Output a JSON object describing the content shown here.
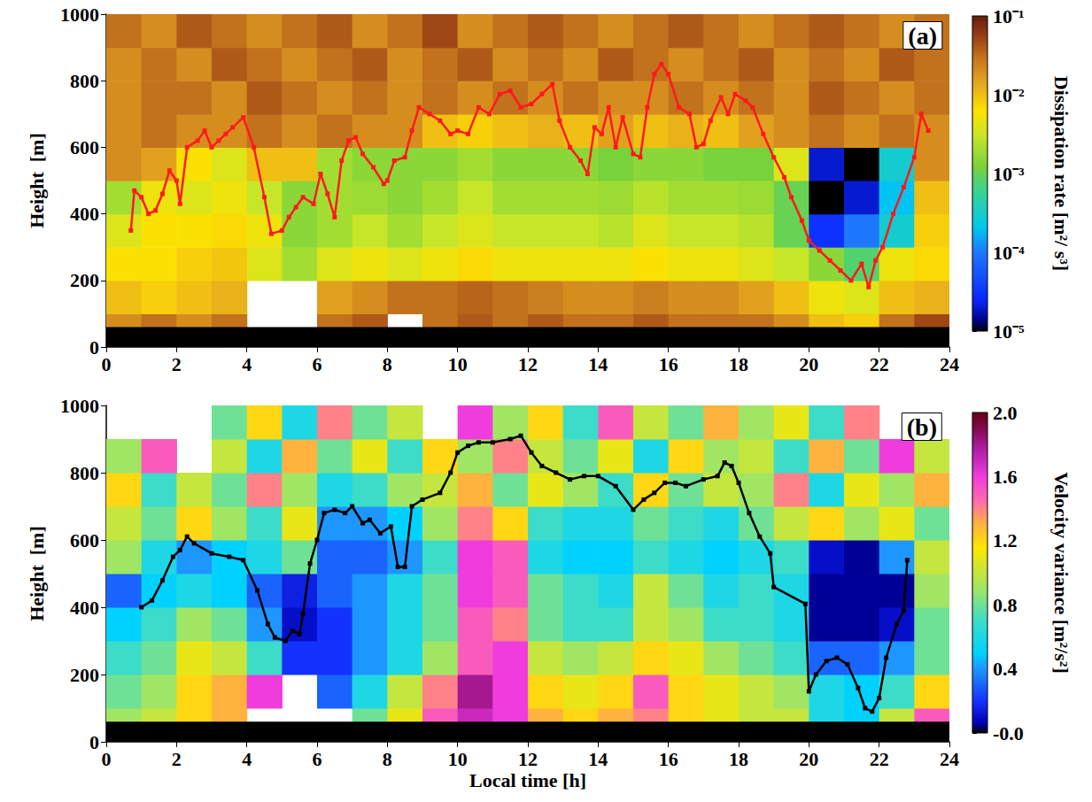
{
  "chart_data": [
    {
      "type": "heatmap",
      "title": "(a)",
      "y_label": "Height  [m]",
      "xlim": [
        0,
        24
      ],
      "xticks": [
        0,
        2,
        4,
        6,
        8,
        10,
        12,
        14,
        16,
        18,
        20,
        22,
        24
      ],
      "ylim": [
        0,
        1000
      ],
      "yticks": [
        0,
        200,
        400,
        600,
        800,
        1000
      ],
      "grid": false,
      "blind_zone": [
        0,
        60
      ],
      "colorbar": {
        "label": "Dissipation rate [m²/ s³]",
        "log": true,
        "lim": [
          1e-05,
          0.1
        ],
        "ticks": [
          {
            "value": 1e-05,
            "label": "10⁻⁵"
          },
          {
            "value": 0.0001,
            "label": "10⁻⁴"
          },
          {
            "value": 0.001,
            "label": "10⁻³"
          },
          {
            "value": 0.01,
            "label": "10⁻²"
          },
          {
            "value": 0.1,
            "label": "10⁻¹"
          }
        ]
      },
      "cells": {
        "x": [
          0.5,
          1.5,
          2.5,
          3.5,
          4.5,
          5.5,
          6.5,
          7.5,
          8.5,
          9.5,
          10.5,
          11.5,
          12.5,
          13.5,
          14.5,
          15.5,
          16.5,
          17.5,
          18.5,
          19.5,
          20.5,
          21.5,
          22.5,
          23.5
        ],
        "y": [
          50,
          150,
          250,
          350,
          450,
          550,
          650,
          750,
          850,
          950
        ],
        "z": [
          [
            0.02,
            0.03,
            0.02,
            0.03,
            null,
            null,
            0.03,
            0.04,
            null,
            0.03,
            0.04,
            0.03,
            0.04,
            0.03,
            0.03,
            0.04,
            0.03,
            0.03,
            0.03,
            0.02,
            0.01,
            0.008,
            0.03,
            0.05
          ],
          [
            0.01,
            0.008,
            0.01,
            0.012,
            null,
            null,
            0.015,
            0.02,
            0.03,
            0.03,
            0.035,
            0.03,
            0.025,
            0.02,
            0.02,
            0.025,
            0.02,
            0.02,
            0.015,
            0.01,
            0.005,
            0.004,
            0.01,
            0.012
          ],
          [
            0.006,
            0.006,
            0.008,
            0.009,
            0.004,
            0.002,
            0.004,
            0.005,
            0.004,
            0.005,
            0.007,
            0.005,
            0.005,
            0.005,
            0.005,
            0.006,
            0.005,
            0.005,
            0.004,
            0.003,
            0.0015,
            0.0008,
            0.005,
            0.007
          ],
          [
            0.004,
            0.006,
            0.006,
            0.007,
            0.005,
            0.0015,
            0.002,
            0.003,
            0.002,
            0.003,
            0.004,
            0.003,
            0.003,
            0.003,
            0.0025,
            0.004,
            0.003,
            0.003,
            0.0025,
            0.001,
            3e-05,
            0.0001,
            0.0003,
            0.008
          ],
          [
            0.002,
            0.005,
            0.004,
            0.005,
            0.003,
            0.0015,
            0.002,
            0.0018,
            0.0015,
            0.002,
            0.003,
            0.002,
            0.002,
            0.002,
            0.0018,
            0.0025,
            0.002,
            0.002,
            0.0018,
            0.001,
            1e-05,
            2e-05,
            0.0002,
            0.01
          ],
          [
            0.02,
            0.015,
            0.006,
            0.004,
            0.01,
            0.01,
            0.002,
            0.0015,
            0.0015,
            0.0015,
            0.002,
            0.0015,
            0.0015,
            0.0015,
            0.0012,
            0.0015,
            0.0015,
            0.0012,
            0.0012,
            0.004,
            2e-05,
            1e-05,
            0.0003,
            0.02
          ],
          [
            0.02,
            0.03,
            0.02,
            0.02,
            0.03,
            0.02,
            0.03,
            0.02,
            0.02,
            0.01,
            0.008,
            0.01,
            0.012,
            0.01,
            0.015,
            0.01,
            0.012,
            0.01,
            0.015,
            0.02,
            0.03,
            0.02,
            0.03,
            0.02
          ],
          [
            0.02,
            0.03,
            0.03,
            0.02,
            0.04,
            0.03,
            0.02,
            0.03,
            0.02,
            0.03,
            0.02,
            0.03,
            0.02,
            0.03,
            0.02,
            0.02,
            0.03,
            0.02,
            0.03,
            0.02,
            0.04,
            0.03,
            0.02,
            0.03
          ],
          [
            0.02,
            0.03,
            0.02,
            0.04,
            0.03,
            0.02,
            0.03,
            0.04,
            0.02,
            0.03,
            0.04,
            0.02,
            0.03,
            0.02,
            0.04,
            0.03,
            0.02,
            0.03,
            0.04,
            0.02,
            0.03,
            0.02,
            0.04,
            0.03
          ],
          [
            0.03,
            0.02,
            0.04,
            0.03,
            0.02,
            0.03,
            0.04,
            0.02,
            0.03,
            0.05,
            0.02,
            0.03,
            0.04,
            0.03,
            0.02,
            0.03,
            0.04,
            0.03,
            0.02,
            0.03,
            0.04,
            0.03,
            0.02,
            0.03
          ]
        ]
      },
      "series": [
        {
          "type": "line",
          "color": "#ff1a1a",
          "marker": "square",
          "x": [
            0.7,
            0.8,
            1.0,
            1.2,
            1.4,
            1.6,
            1.8,
            2.0,
            2.1,
            2.3,
            2.6,
            2.8,
            3.0,
            3.2,
            3.4,
            3.6,
            3.9,
            4.2,
            4.5,
            4.7,
            5.0,
            5.2,
            5.4,
            5.6,
            5.9,
            6.1,
            6.3,
            6.5,
            6.7,
            6.9,
            7.1,
            7.3,
            7.6,
            7.9,
            8.0,
            8.2,
            8.5,
            8.7,
            8.9,
            9.2,
            9.5,
            9.8,
            10.0,
            10.3,
            10.6,
            10.9,
            11.2,
            11.5,
            11.8,
            12.1,
            12.4,
            12.7,
            12.9,
            13.2,
            13.5,
            13.7,
            13.9,
            14.1,
            14.3,
            14.5,
            14.7,
            15.0,
            15.2,
            15.4,
            15.6,
            15.8,
            16.0,
            16.3,
            16.6,
            16.8,
            17.0,
            17.2,
            17.5,
            17.7,
            17.9,
            18.2,
            18.4,
            18.7,
            19.0,
            19.3,
            19.5,
            19.8,
            20.0,
            20.3,
            20.6,
            20.9,
            21.2,
            21.5,
            21.7,
            21.9,
            22.1,
            22.4,
            22.7,
            23.0,
            23.2,
            23.4
          ],
          "values": [
            350,
            470,
            450,
            400,
            410,
            460,
            530,
            500,
            430,
            600,
            620,
            650,
            600,
            620,
            640,
            660,
            690,
            600,
            450,
            340,
            350,
            390,
            420,
            450,
            430,
            520,
            460,
            390,
            560,
            620,
            630,
            580,
            540,
            490,
            500,
            560,
            570,
            650,
            720,
            700,
            680,
            640,
            650,
            640,
            720,
            700,
            760,
            770,
            720,
            730,
            760,
            790,
            680,
            600,
            560,
            520,
            660,
            640,
            720,
            600,
            690,
            580,
            570,
            720,
            820,
            850,
            820,
            720,
            700,
            600,
            610,
            680,
            750,
            700,
            760,
            740,
            720,
            640,
            570,
            510,
            450,
            380,
            320,
            290,
            260,
            230,
            200,
            250,
            180,
            260,
            300,
            400,
            480,
            570,
            700,
            650
          ]
        }
      ]
    },
    {
      "type": "heatmap",
      "title": "(b)",
      "x_label": "Local time [h]",
      "y_label": "Height  [m]",
      "xlim": [
        0,
        24
      ],
      "xticks": [
        0,
        2,
        4,
        6,
        8,
        10,
        12,
        14,
        16,
        18,
        20,
        22,
        24
      ],
      "ylim": [
        0,
        1000
      ],
      "yticks": [
        0,
        200,
        400,
        600,
        800,
        1000
      ],
      "grid": false,
      "blind_zone": [
        0,
        60
      ],
      "colorbar": {
        "label": "Velocity variance [m²/s²]",
        "log": false,
        "lim": [
          0,
          2
        ],
        "ticks": [
          {
            "value": 0,
            "label": "-0.0"
          },
          0.4,
          0.8,
          1.2,
          1.6,
          {
            "value": 2,
            "label": "2.0"
          }
        ]
      },
      "cells": {
        "x": [
          0.5,
          1.5,
          2.5,
          3.5,
          4.5,
          5.5,
          6.5,
          7.5,
          8.5,
          9.5,
          10.5,
          11.5,
          12.5,
          13.5,
          14.5,
          15.5,
          16.5,
          17.5,
          18.5,
          19.5,
          20.5,
          21.5,
          22.5,
          23.5
        ],
        "y": [
          50,
          150,
          250,
          350,
          450,
          550,
          650,
          750,
          850,
          950
        ],
        "z": [
          [
            0.9,
            1.0,
            1.2,
            1.3,
            null,
            null,
            null,
            0.8,
            1.1,
            1.5,
            1.7,
            1.6,
            1.3,
            1.2,
            1.3,
            1.4,
            1.2,
            1.1,
            1.0,
            1.0,
            0.6,
            0.5,
            1.0,
            1.5
          ],
          [
            0.8,
            0.9,
            1.2,
            1.3,
            1.6,
            null,
            0.3,
            0.6,
            1.0,
            1.4,
            1.8,
            1.6,
            1.2,
            1.1,
            1.2,
            1.5,
            1.2,
            1.1,
            1.0,
            0.9,
            0.6,
            0.5,
            0.7,
            1.2
          ],
          [
            0.7,
            0.8,
            1.1,
            1.0,
            0.7,
            0.2,
            0.2,
            0.4,
            0.6,
            0.9,
            1.5,
            1.6,
            1.0,
            0.9,
            1.0,
            1.2,
            1.1,
            0.9,
            0.8,
            0.7,
            0.3,
            0.3,
            0.4,
            0.8
          ],
          [
            0.5,
            0.7,
            0.9,
            0.8,
            0.4,
            0.1,
            0.2,
            0.4,
            0.6,
            0.8,
            1.5,
            1.4,
            0.8,
            0.7,
            0.7,
            1.0,
            0.9,
            0.7,
            0.7,
            0.6,
            0.05,
            0.05,
            0.1,
            0.8
          ],
          [
            0.3,
            0.5,
            0.6,
            0.5,
            0.3,
            0.15,
            0.3,
            0.4,
            0.6,
            0.8,
            1.6,
            1.5,
            0.8,
            0.7,
            0.6,
            1.0,
            0.8,
            0.6,
            0.7,
            0.6,
            0.05,
            0.05,
            0.05,
            0.9
          ],
          [
            0.9,
            0.6,
            0.4,
            0.5,
            0.6,
            0.8,
            0.3,
            0.3,
            0.4,
            0.7,
            1.6,
            1.5,
            0.6,
            0.5,
            0.5,
            0.7,
            0.6,
            0.5,
            0.6,
            0.7,
            0.1,
            0.05,
            0.4,
            1.0
          ],
          [
            1.0,
            0.8,
            1.2,
            0.9,
            0.7,
            1.1,
            0.4,
            0.4,
            0.5,
            0.9,
            1.4,
            1.2,
            0.7,
            0.6,
            0.6,
            0.8,
            0.7,
            0.6,
            0.8,
            1.0,
            1.2,
            0.9,
            1.1,
            0.8
          ],
          [
            1.2,
            0.7,
            1.0,
            0.8,
            1.4,
            0.9,
            0.6,
            0.7,
            0.9,
            1.0,
            1.3,
            0.8,
            1.1,
            0.9,
            0.7,
            1.2,
            0.8,
            1.0,
            0.9,
            1.4,
            0.6,
            1.1,
            0.9,
            1.3
          ],
          [
            0.9,
            1.5,
            null,
            1.0,
            0.6,
            1.3,
            0.8,
            1.1,
            0.7,
            1.2,
            0.9,
            1.4,
            1.0,
            0.8,
            1.1,
            0.6,
            1.2,
            0.9,
            1.0,
            0.7,
            1.3,
            0.8,
            1.6,
            1.0
          ],
          [
            null,
            null,
            null,
            0.8,
            1.2,
            0.6,
            1.4,
            0.8,
            1.0,
            null,
            1.6,
            0.9,
            1.2,
            0.7,
            1.5,
            1.0,
            0.8,
            1.3,
            0.9,
            1.1,
            0.7,
            1.4,
            null,
            null
          ]
        ]
      },
      "series": [
        {
          "type": "line",
          "color": "#000000",
          "marker": "square",
          "x": [
            1.0,
            1.3,
            1.6,
            1.9,
            2.1,
            2.3,
            2.5,
            3.0,
            3.5,
            3.9,
            4.3,
            4.6,
            4.8,
            5.1,
            5.3,
            5.5,
            5.6,
            5.8,
            6.0,
            6.2,
            6.5,
            6.8,
            7.0,
            7.3,
            7.5,
            7.8,
            8.1,
            8.3,
            8.5,
            8.7,
            9.0,
            9.5,
            9.8,
            10.0,
            10.3,
            10.6,
            11.0,
            11.5,
            11.8,
            12.1,
            12.4,
            12.8,
            13.2,
            13.6,
            14.0,
            14.5,
            15.0,
            15.3,
            15.6,
            15.9,
            16.2,
            16.5,
            17.0,
            17.4,
            17.6,
            17.8,
            18.0,
            18.3,
            18.6,
            18.9,
            19.0,
            19.9,
            20.0,
            20.2,
            20.5,
            20.8,
            21.1,
            21.4,
            21.6,
            21.8,
            22.0,
            22.2,
            22.5,
            22.7,
            22.8
          ],
          "values": [
            400,
            420,
            480,
            550,
            570,
            610,
            590,
            560,
            550,
            540,
            450,
            350,
            310,
            300,
            330,
            320,
            380,
            530,
            600,
            680,
            690,
            680,
            700,
            650,
            660,
            620,
            640,
            520,
            520,
            700,
            720,
            740,
            800,
            860,
            880,
            890,
            890,
            900,
            910,
            860,
            820,
            800,
            780,
            790,
            790,
            760,
            690,
            720,
            740,
            770,
            770,
            760,
            780,
            790,
            830,
            820,
            770,
            680,
            610,
            560,
            460,
            410,
            150,
            200,
            240,
            250,
            230,
            160,
            100,
            90,
            130,
            250,
            350,
            390,
            540
          ]
        }
      ]
    }
  ]
}
